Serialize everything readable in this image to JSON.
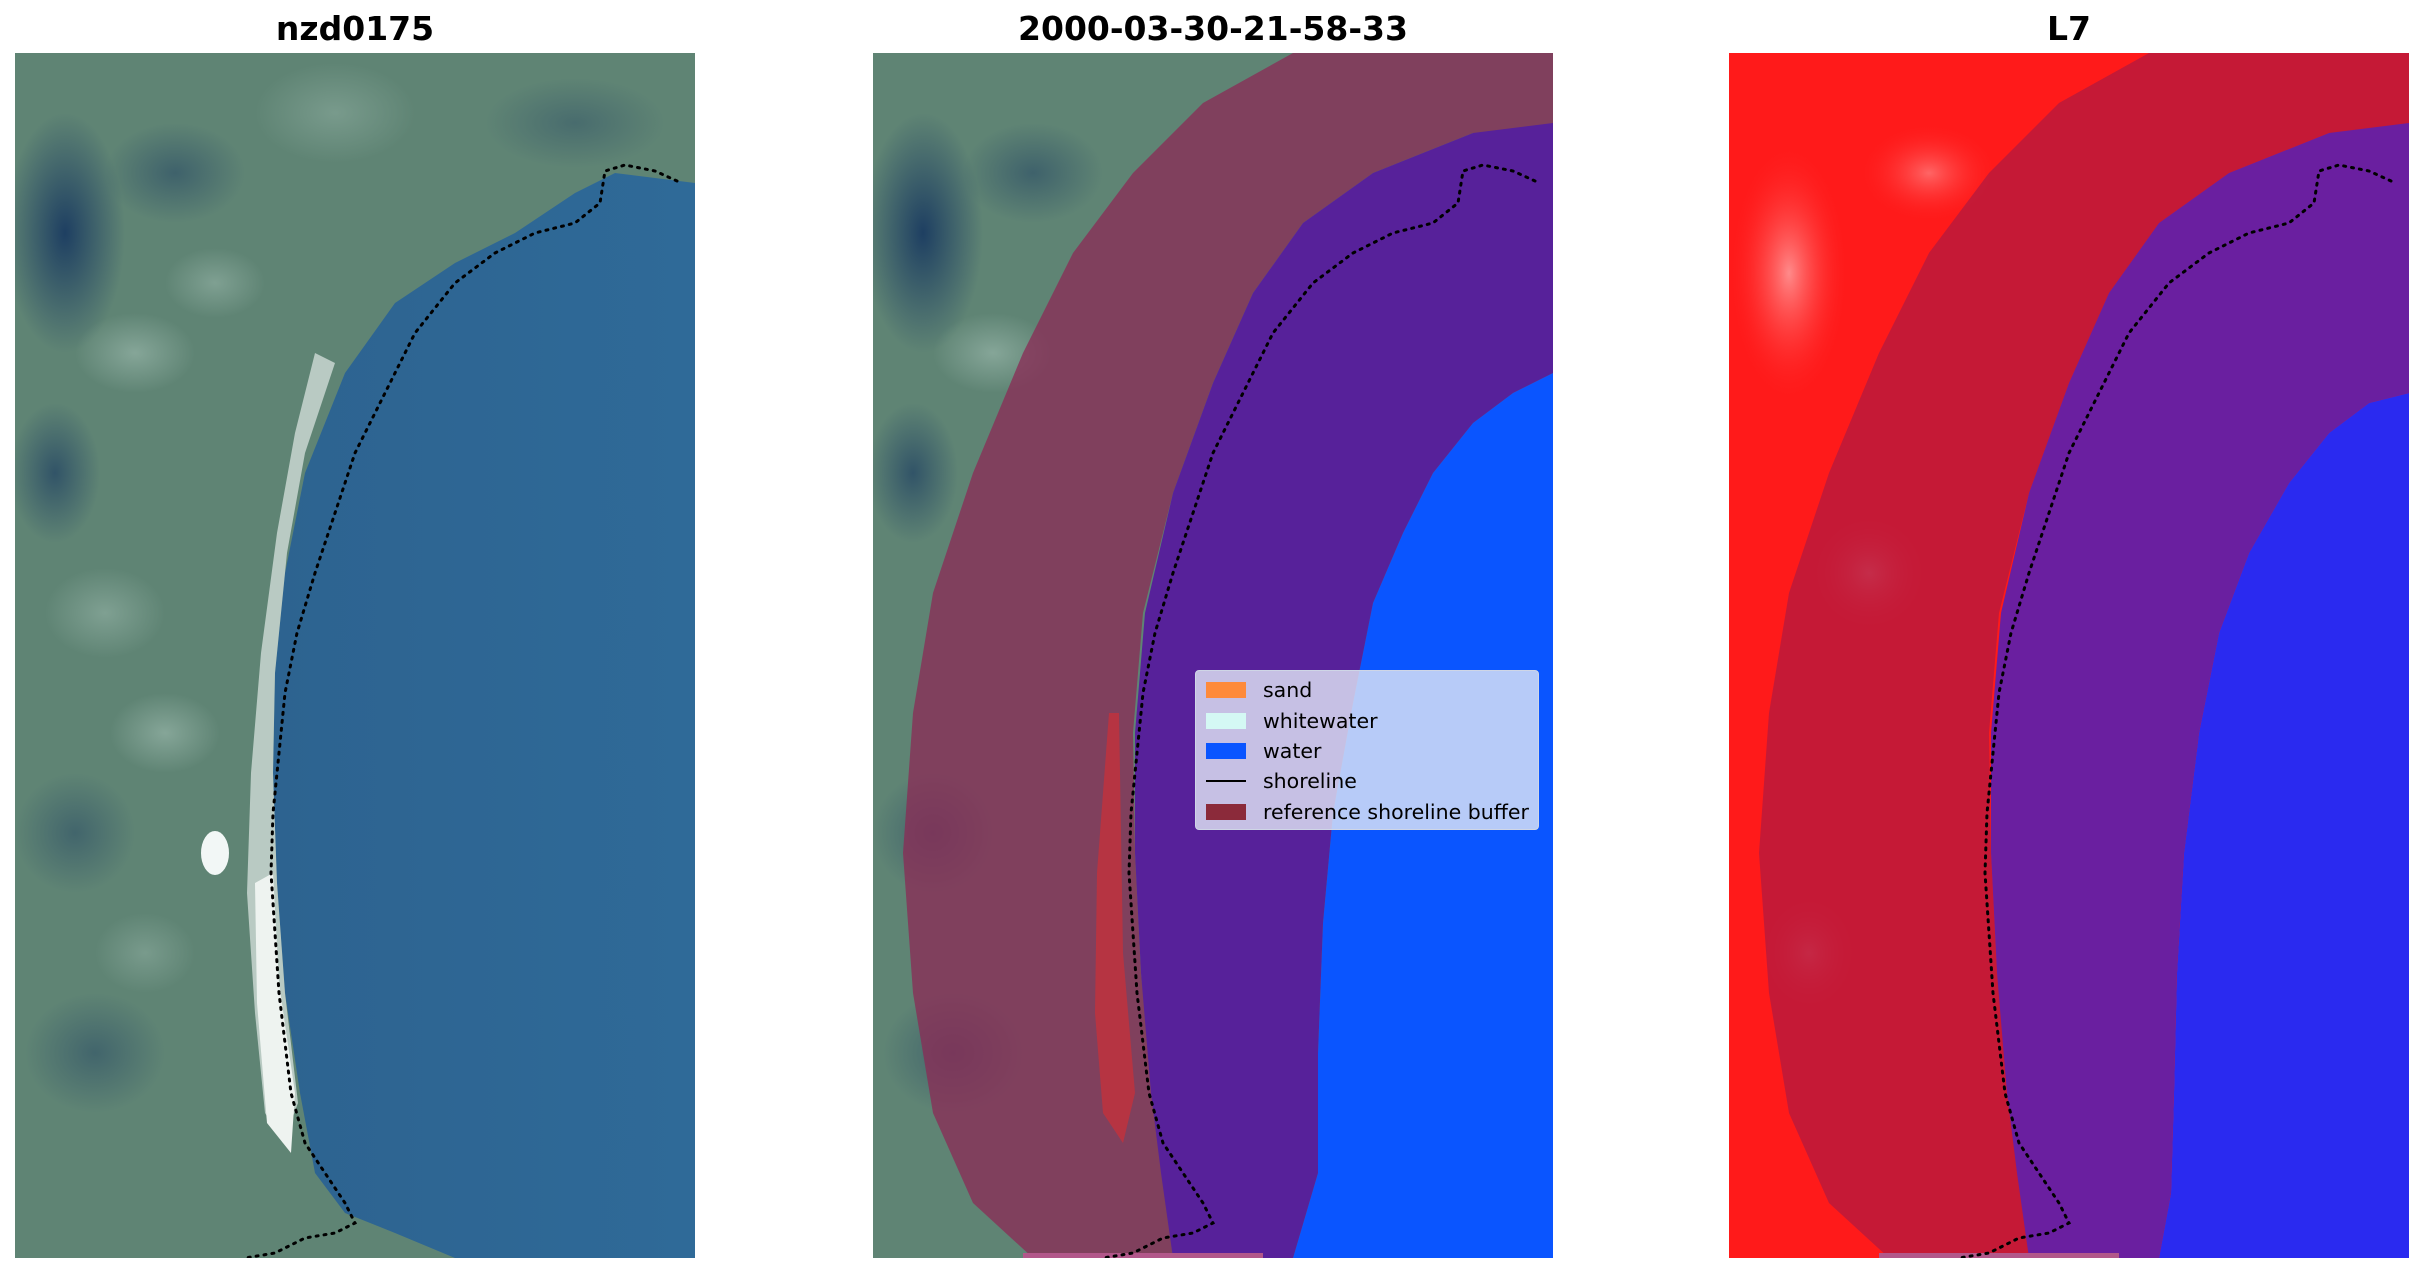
{
  "panels": [
    {
      "title": "nzd0175"
    },
    {
      "title": "2000-03-30-21-58-33"
    },
    {
      "title": "L7"
    }
  ],
  "legend": {
    "items": [
      {
        "label": "sand",
        "color": "#fe8a3a",
        "kind": "patch"
      },
      {
        "label": "whitewater",
        "color": "#d4f8f4",
        "kind": "patch"
      },
      {
        "label": "water",
        "color": "#0a55ff",
        "kind": "patch"
      },
      {
        "label": "shoreline",
        "color": "#000000",
        "kind": "line"
      },
      {
        "label": "reference shoreline buffer",
        "color": "#8b2a3a",
        "kind": "patch"
      }
    ]
  },
  "colors": {
    "land": "#5f8374",
    "sea": "#2f6692",
    "beach": "#e8eeea",
    "buffer_overlay": "#8b2a55",
    "class_water": "#0a55ff",
    "class_land": "#ff1a1a",
    "shoreline": "#000000"
  }
}
